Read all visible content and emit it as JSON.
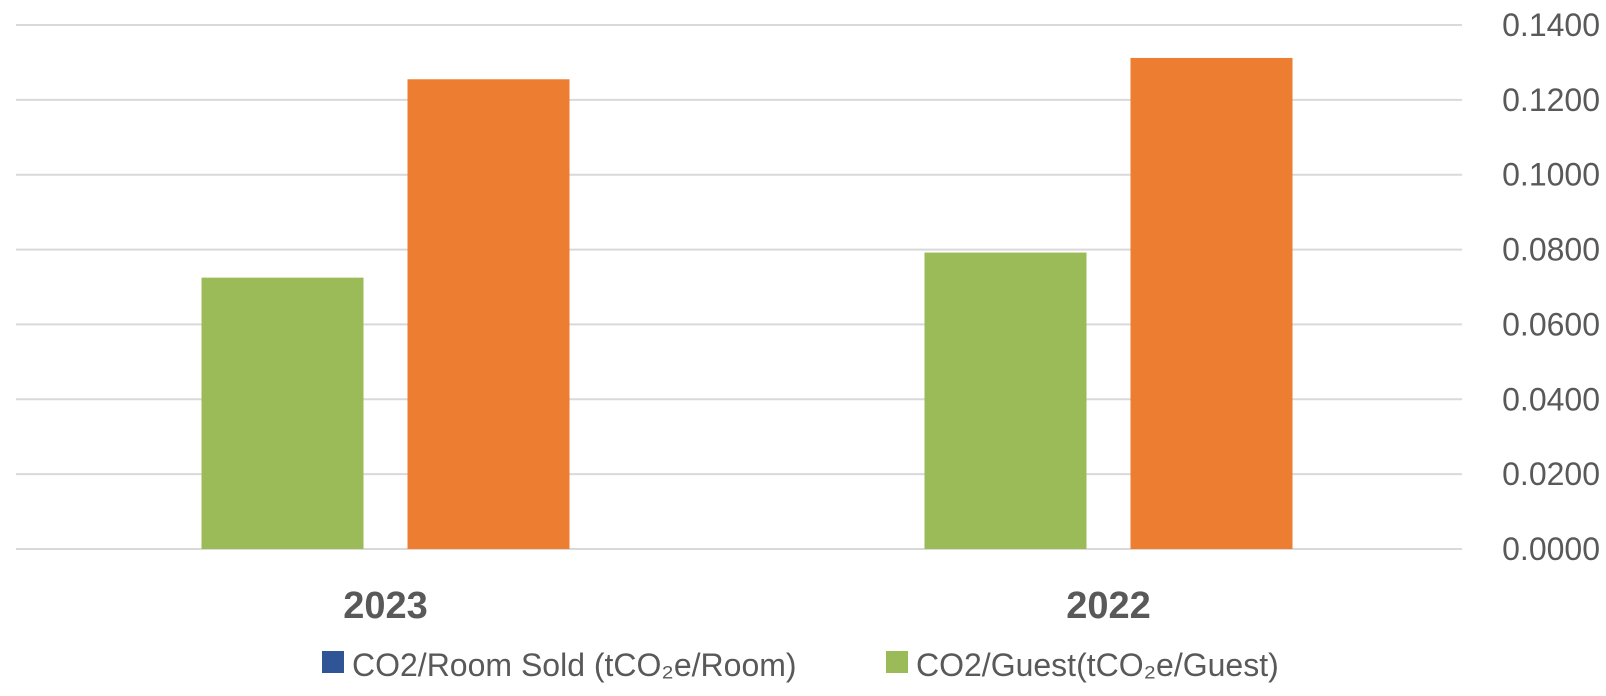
{
  "chart_data": {
    "type": "bar",
    "categories": [
      "2023",
      "2022"
    ],
    "series": [
      {
        "name": "CO2/Room Sold (tCO₂e/Room)",
        "color": "#2f5597",
        "values": [
          null,
          null
        ]
      },
      {
        "name": "CO2/Guest(tCO₂e/Guest)",
        "color": "#9bbb59",
        "values": [
          0.0725,
          0.0792
        ]
      },
      {
        "name": "",
        "color": "#ed7d31",
        "values": [
          0.1255,
          0.1312
        ]
      }
    ],
    "ylim": [
      0,
      0.14
    ],
    "yticks": [
      "0.0000",
      "0.0200",
      "0.0400",
      "0.0600",
      "0.0800",
      "0.1000",
      "0.1200",
      "0.1400"
    ],
    "y_axis_side": "right",
    "grid": true,
    "legend_position": "bottom",
    "title": "",
    "xlabel": "",
    "ylabel": ""
  }
}
